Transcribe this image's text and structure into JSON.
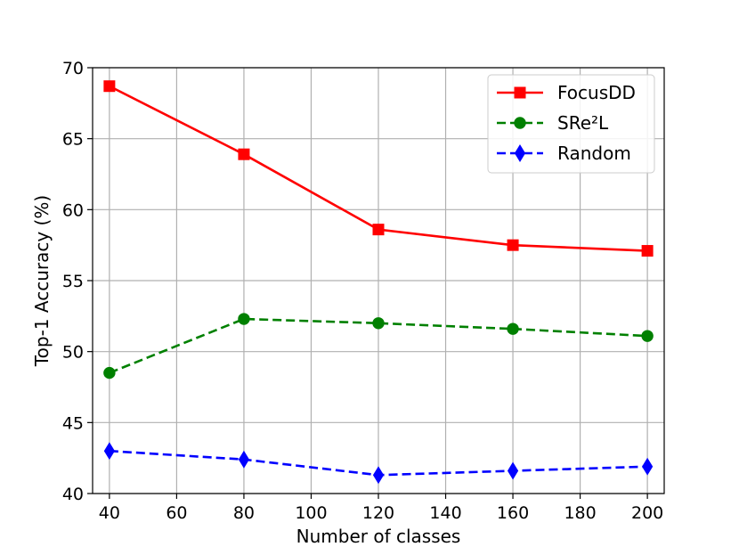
{
  "chart_data": {
    "type": "line",
    "xlabel": "Number of classes",
    "ylabel": "Top-1 Accuracy (%)",
    "xlim": [
      35,
      205
    ],
    "ylim": [
      40,
      70
    ],
    "xticks": [
      40,
      60,
      80,
      100,
      120,
      140,
      160,
      180,
      200
    ],
    "yticks": [
      40,
      45,
      50,
      55,
      60,
      65,
      70
    ],
    "grid": true,
    "legend_position": "top-right",
    "x": [
      40,
      80,
      120,
      160,
      200
    ],
    "series": [
      {
        "name": "FocusDD",
        "values": [
          68.7,
          63.9,
          58.6,
          57.5,
          57.1
        ],
        "color": "#ff0000",
        "marker": "square",
        "linestyle": "solid"
      },
      {
        "name": "SRe²L",
        "values": [
          48.5,
          52.3,
          52.0,
          51.6,
          51.1
        ],
        "color": "#008000",
        "marker": "circle",
        "linestyle": "dashed"
      },
      {
        "name": "Random",
        "values": [
          43.0,
          42.4,
          41.3,
          41.6,
          41.9
        ],
        "color": "#0000ff",
        "marker": "diamond",
        "linestyle": "dashed"
      }
    ]
  }
}
